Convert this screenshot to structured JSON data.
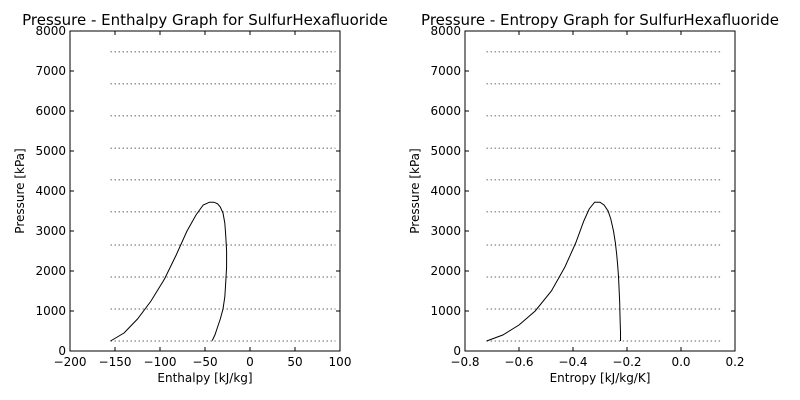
{
  "chart_data": [
    {
      "type": "line",
      "title": "Pressure - Enthalpy Graph for SulfurHexafluoride",
      "xlabel": "Enthalpy [kJ/kg]",
      "ylabel": "Pressure [kPa]",
      "xlim": [
        -200,
        100
      ],
      "ylim": [
        0,
        8000
      ],
      "xticks": [
        -200,
        -150,
        -100,
        -50,
        0,
        50,
        100
      ],
      "xtick_labels": [
        "−200",
        "−150",
        "−100",
        "−50",
        "0",
        "50",
        "100"
      ],
      "yticks": [
        0,
        1000,
        2000,
        3000,
        4000,
        5000,
        6000,
        7000,
        8000
      ],
      "ytick_labels": [
        "0",
        "1000",
        "2000",
        "3000",
        "4000",
        "5000",
        "6000",
        "7000",
        "8000"
      ],
      "grid": false,
      "series": [
        {
          "style": "solid",
          "color": "#000000",
          "x": [
            -155,
            -140,
            -125,
            -110,
            -95,
            -82,
            -70,
            -60,
            -52,
            -45,
            -40,
            -36,
            -33,
            -30,
            -28,
            -27,
            -26,
            -26,
            -27,
            -28,
            -30,
            -33,
            -36,
            -39,
            -42
          ],
          "y": [
            250,
            450,
            800,
            1250,
            1800,
            2400,
            3000,
            3400,
            3650,
            3720,
            3720,
            3680,
            3600,
            3450,
            3200,
            2900,
            2500,
            2100,
            1700,
            1350,
            1050,
            800,
            600,
            400,
            260
          ]
        }
      ],
      "isobars": {
        "style": "dotted",
        "color": "#999999",
        "x_range": [
          -155,
          95
        ],
        "y": [
          250,
          1050,
          1850,
          2650,
          3480,
          4280,
          5070,
          5880,
          6680,
          7480
        ]
      }
    },
    {
      "type": "line",
      "title": "Pressure - Entropy Graph for SulfurHexafluoride",
      "xlabel": "Entropy [kJ/kg/K]",
      "ylabel": "Pressure [kPa]",
      "xlim": [
        -0.8,
        0.2
      ],
      "ylim": [
        0,
        8000
      ],
      "xticks": [
        -0.8,
        -0.6,
        -0.4,
        -0.2,
        0.0,
        0.2
      ],
      "xtick_labels": [
        "−0.8",
        "−0.6",
        "−0.4",
        "−0.2",
        "0.0",
        "0.2"
      ],
      "yticks": [
        0,
        1000,
        2000,
        3000,
        4000,
        5000,
        6000,
        7000,
        8000
      ],
      "ytick_labels": [
        "0",
        "1000",
        "2000",
        "3000",
        "4000",
        "5000",
        "6000",
        "7000",
        "8000"
      ],
      "grid": false,
      "series": [
        {
          "style": "solid",
          "color": "#000000",
          "x": [
            -0.72,
            -0.66,
            -0.6,
            -0.54,
            -0.48,
            -0.43,
            -0.39,
            -0.36,
            -0.34,
            -0.32,
            -0.3,
            -0.285,
            -0.27,
            -0.26,
            -0.25,
            -0.243,
            -0.238,
            -0.234,
            -0.231,
            -0.229,
            -0.227,
            -0.226,
            -0.225,
            -0.224,
            -0.224
          ],
          "y": [
            250,
            400,
            650,
            1000,
            1500,
            2100,
            2700,
            3250,
            3550,
            3720,
            3720,
            3650,
            3500,
            3300,
            3000,
            2700,
            2400,
            2100,
            1800,
            1500,
            1200,
            900,
            650,
            450,
            250
          ]
        }
      ],
      "isobars": {
        "style": "dotted",
        "color": "#999999",
        "x_range": [
          -0.72,
          0.15
        ],
        "y": [
          250,
          1050,
          1850,
          2650,
          3480,
          4280,
          5070,
          5880,
          6680,
          7480
        ]
      }
    }
  ]
}
